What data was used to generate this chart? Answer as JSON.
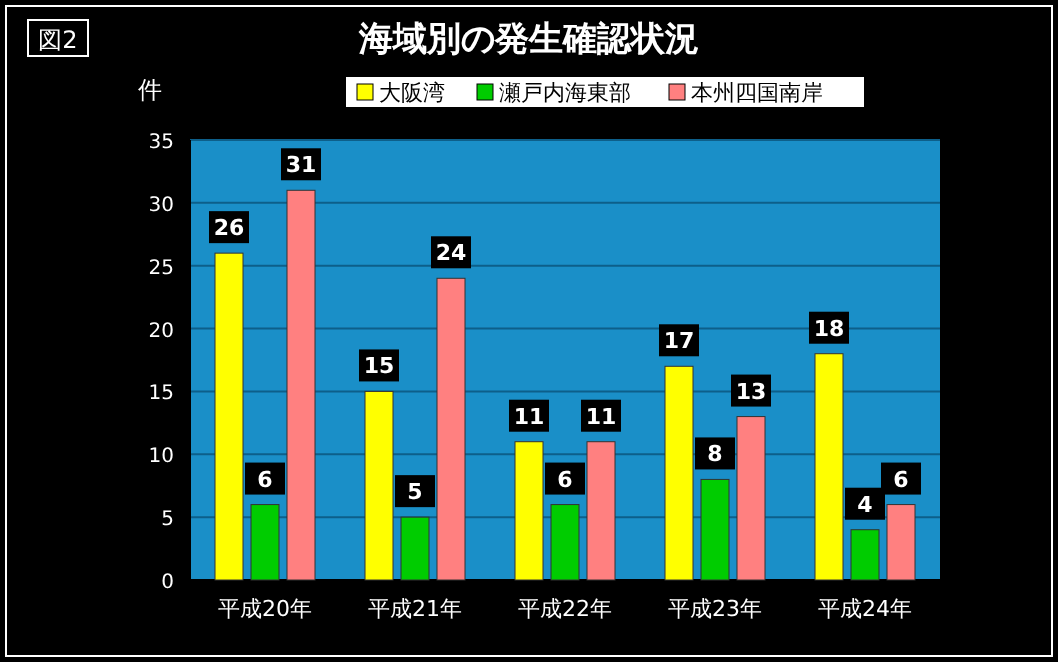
{
  "chart_data": {
    "type": "bar",
    "title": "海域別の発生確認状況",
    "ylabel": "件",
    "annotations": [
      "図2"
    ],
    "categories": [
      "平成20年",
      "平成21年",
      "平成22年",
      "平成23年",
      "平成24年"
    ],
    "series": [
      {
        "name": "大阪湾",
        "color": "#ffff00",
        "values": [
          26,
          15,
          11,
          17,
          18
        ]
      },
      {
        "name": "瀬戸内海東部",
        "color": "#00cc00",
        "values": [
          6,
          5,
          6,
          8,
          4
        ]
      },
      {
        "name": "本州四国南岸",
        "color": "#ff8080",
        "values": [
          31,
          24,
          11,
          13,
          6
        ]
      }
    ],
    "ylim": [
      0,
      35
    ],
    "yticks": [
      0,
      5,
      10,
      15,
      20,
      25,
      30,
      35
    ],
    "grid": "y",
    "legend": "top",
    "data_labels": true
  }
}
